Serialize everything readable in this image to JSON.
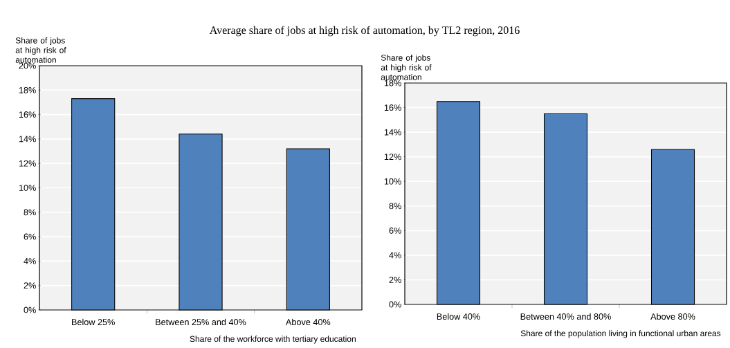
{
  "chart_data": [
    {
      "type": "bar",
      "title": "Average share of jobs at high risk of automation, by TL2 region, 2016",
      "ylabel": "Share of jobs at high risk of automation",
      "xlabel": "Share of the workforce with tertiary education",
      "categories": [
        "Below 25%",
        "Between 25% and 40%",
        "Above 40%"
      ],
      "values": [
        17.3,
        14.4,
        13.2
      ],
      "color": "#4f81bd",
      "ylim": [
        0,
        20
      ],
      "yticks": [
        {
          "value": 0,
          "label": "0%"
        },
        {
          "value": 2,
          "label": "2%"
        },
        {
          "value": 4,
          "label": "4%"
        },
        {
          "value": 6,
          "label": "6%"
        },
        {
          "value": 8,
          "label": "8%"
        },
        {
          "value": 10,
          "label": "10%"
        },
        {
          "value": 12,
          "label": "12%"
        },
        {
          "value": 14,
          "label": "14%"
        },
        {
          "value": 16,
          "label": "16%"
        },
        {
          "value": 18,
          "label": "18%"
        },
        {
          "value": 20,
          "label": "20%"
        }
      ],
      "grid": "y"
    },
    {
      "type": "bar",
      "ylabel": "Share of jobs at high risk of automation",
      "xlabel": "Share of the population living in functional urban areas",
      "categories": [
        "Below 40%",
        "Between 40% and 80%",
        "Above 80%"
      ],
      "values": [
        16.5,
        15.5,
        12.6
      ],
      "color": "#4f81bd",
      "ylim": [
        0,
        18
      ],
      "yticks": [
        {
          "value": 0,
          "label": "0%"
        },
        {
          "value": 2,
          "label": "2%"
        },
        {
          "value": 4,
          "label": "4%"
        },
        {
          "value": 6,
          "label": "6%"
        },
        {
          "value": 8,
          "label": "8%"
        },
        {
          "value": 10,
          "label": "10%"
        },
        {
          "value": 12,
          "label": "12%"
        },
        {
          "value": 14,
          "label": "14%"
        },
        {
          "value": 16,
          "label": "16%"
        },
        {
          "value": 18,
          "label": "18%"
        }
      ],
      "grid": "y"
    }
  ]
}
